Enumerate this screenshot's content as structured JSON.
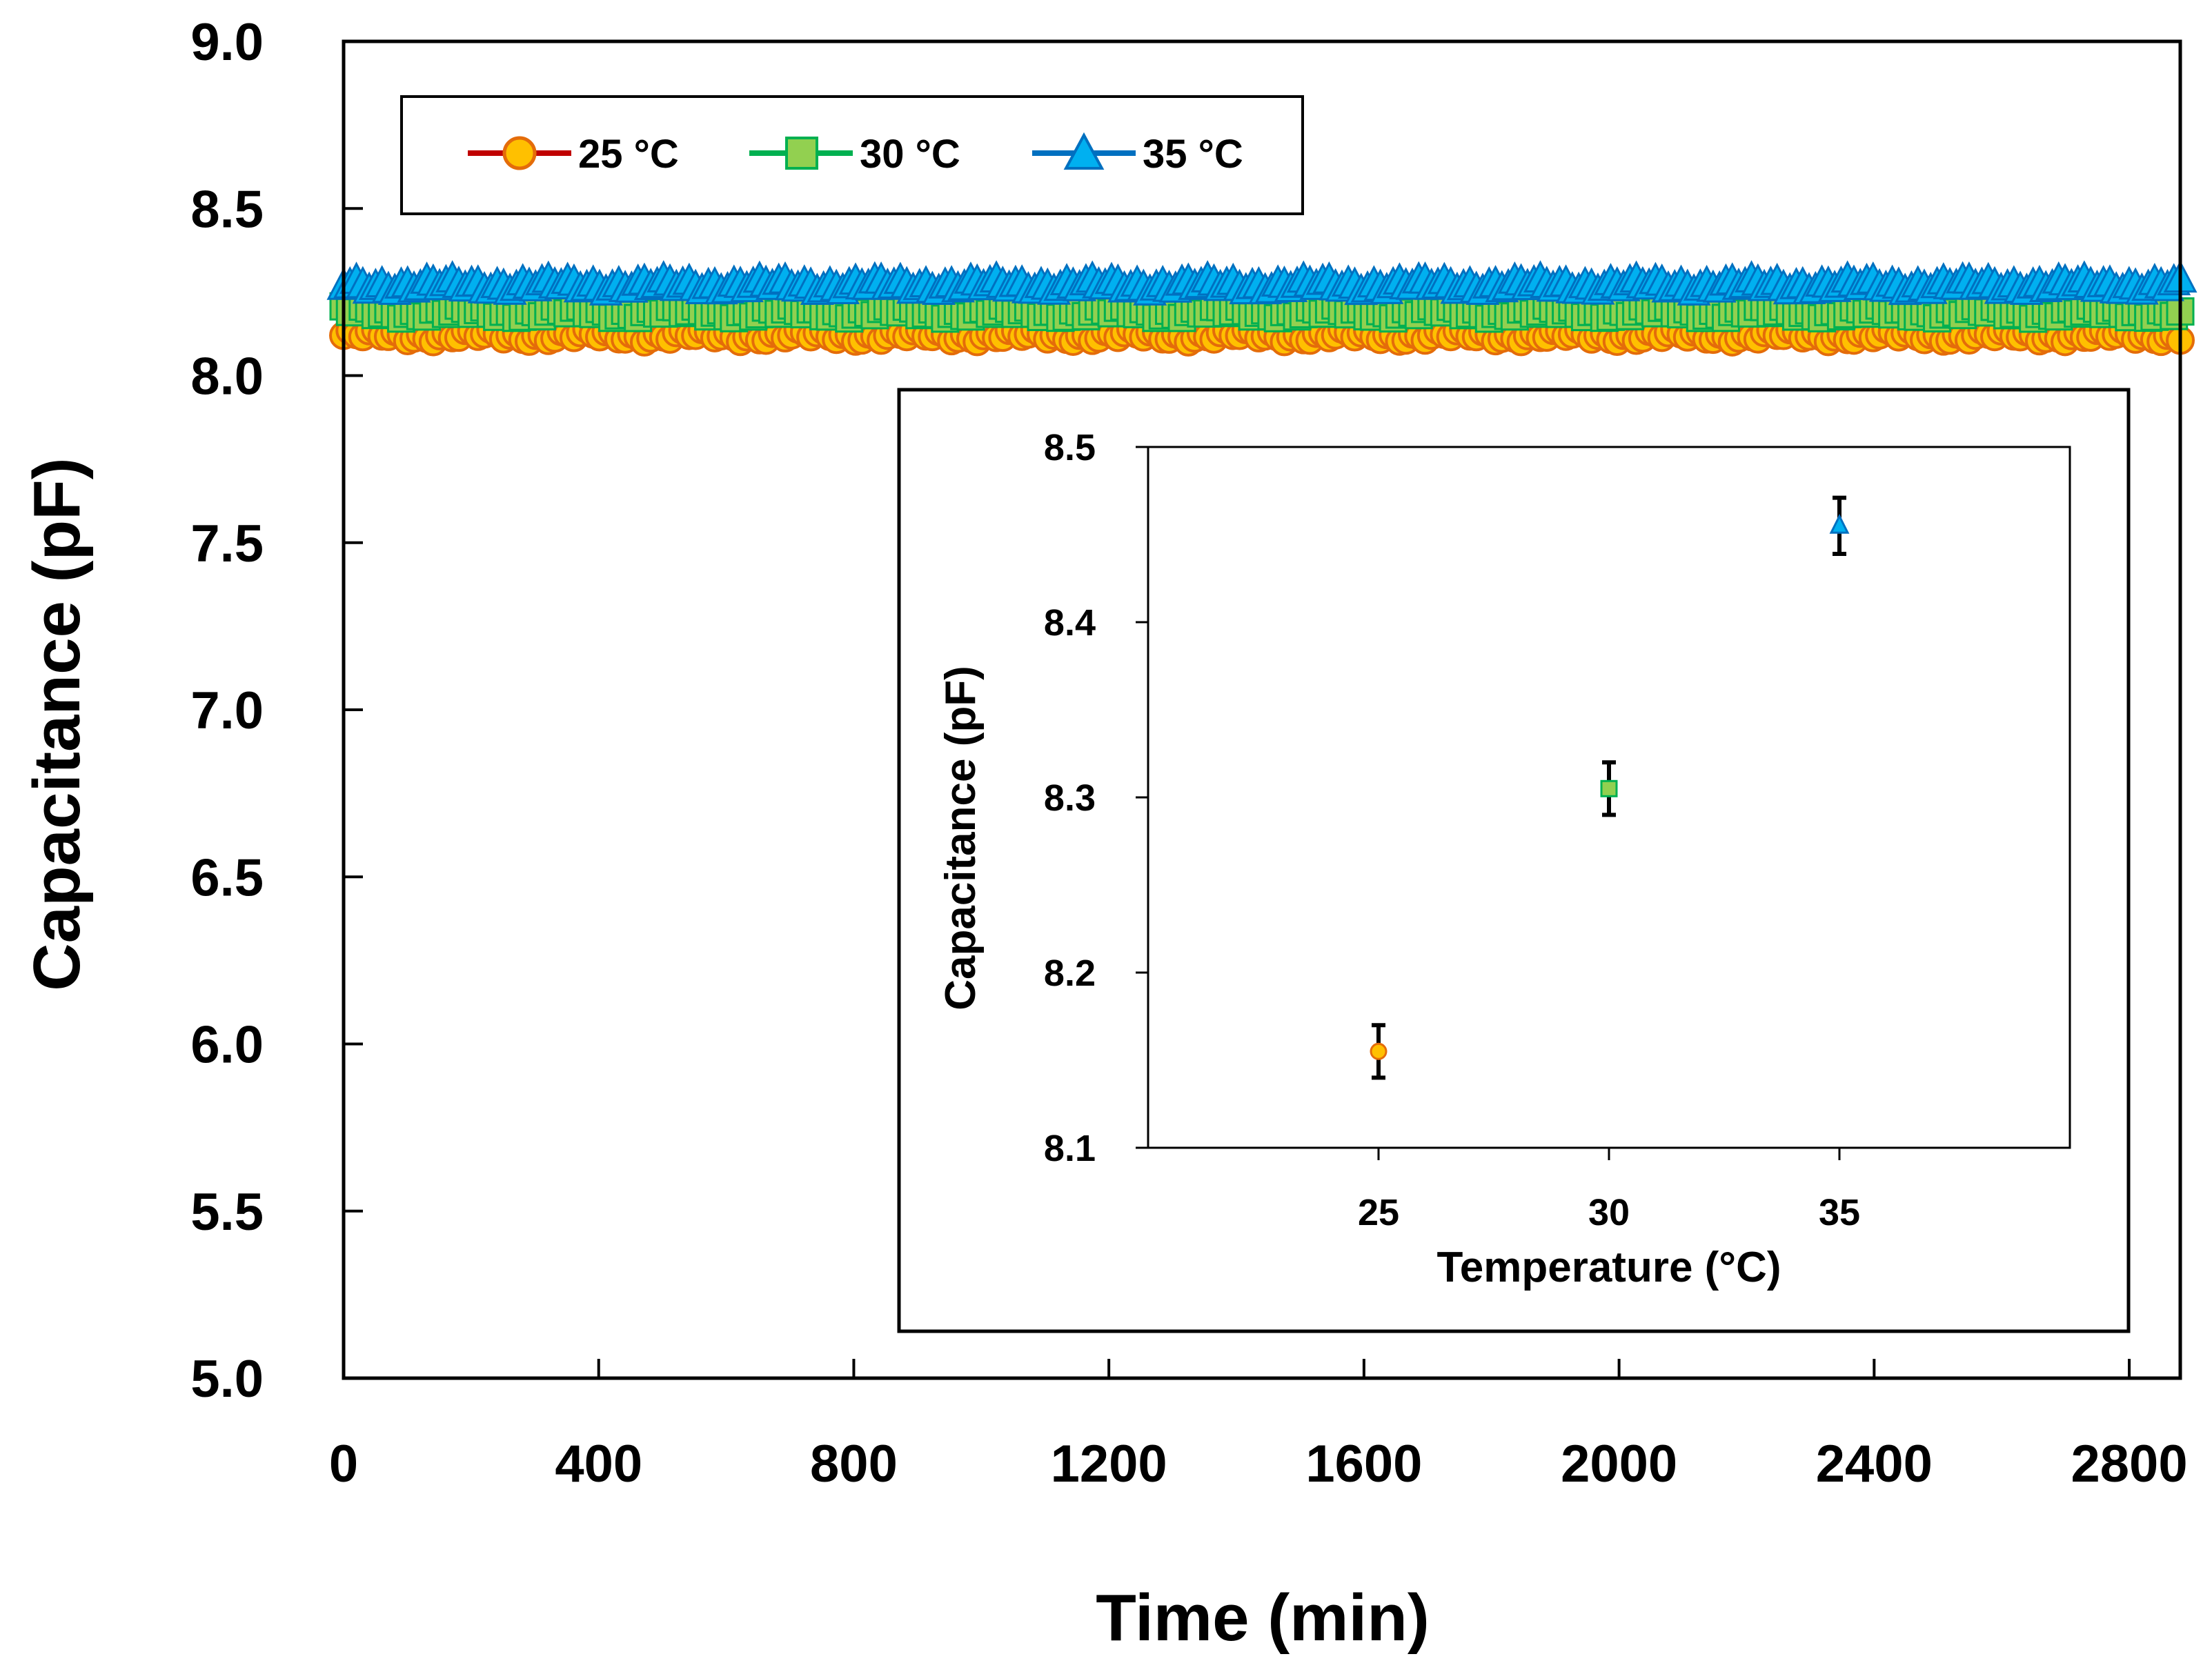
{
  "chart_data": [
    {
      "type": "line",
      "title": "",
      "xlabel": "Time (min)",
      "ylabel": "Capacitance (pF)",
      "xlim": [
        0,
        2880
      ],
      "ylim": [
        5.0,
        9.0
      ],
      "xticks": [
        "0",
        "400",
        "800",
        "1200",
        "1600",
        "2000",
        "2400",
        "2800"
      ],
      "xtick_values": [
        0,
        400,
        800,
        1200,
        1600,
        2000,
        2400,
        2800
      ],
      "yticks": [
        "5.0",
        "5.5",
        "6.0",
        "6.5",
        "7.0",
        "7.5",
        "8.0",
        "8.5",
        "9.0"
      ],
      "ytick_values": [
        5.0,
        5.5,
        6.0,
        6.5,
        7.0,
        7.5,
        8.0,
        8.5,
        9.0
      ],
      "legend_position": "top-left",
      "series": [
        {
          "name": "25 °C",
          "marker": "circle",
          "line_color": "#c00000",
          "marker_fill": "#ffc000",
          "marker_edge": "#e46c0a",
          "mean": 8.12,
          "x_range": [
            0,
            2880
          ]
        },
        {
          "name": "30 °C",
          "marker": "square",
          "line_color": "#00b050",
          "marker_fill": "#92d050",
          "marker_edge": "#00b050",
          "mean": 8.19,
          "x_range": [
            0,
            2880
          ]
        },
        {
          "name": "35 °C",
          "marker": "triangle",
          "line_color": "#0070c0",
          "marker_fill": "#00b0f0",
          "marker_edge": "#0070c0",
          "mean": 8.27,
          "x_range": [
            0,
            2880
          ]
        }
      ]
    },
    {
      "type": "scatter",
      "title": "",
      "xlabel": "Temperature (°C)",
      "ylabel": "Capacitance (pF)",
      "xlim": [
        20,
        40
      ],
      "ylim": [
        8.1,
        8.5
      ],
      "xticks": [
        "25",
        "30",
        "35"
      ],
      "xtick_values": [
        25,
        30,
        35
      ],
      "yticks": [
        "8.1",
        "8.2",
        "8.3",
        "8.4",
        "8.5"
      ],
      "ytick_values": [
        8.1,
        8.2,
        8.3,
        8.4,
        8.5
      ],
      "points": [
        {
          "x": 25,
          "y": 8.155,
          "err": 0.015,
          "marker": "circle",
          "fill": "#ffc000",
          "edge": "#e46c0a"
        },
        {
          "x": 30,
          "y": 8.305,
          "err": 0.015,
          "marker": "square",
          "fill": "#92d050",
          "edge": "#00b050"
        },
        {
          "x": 35,
          "y": 8.455,
          "err": 0.016,
          "marker": "triangle",
          "fill": "#00b0f0",
          "edge": "#0070c0"
        }
      ]
    }
  ]
}
